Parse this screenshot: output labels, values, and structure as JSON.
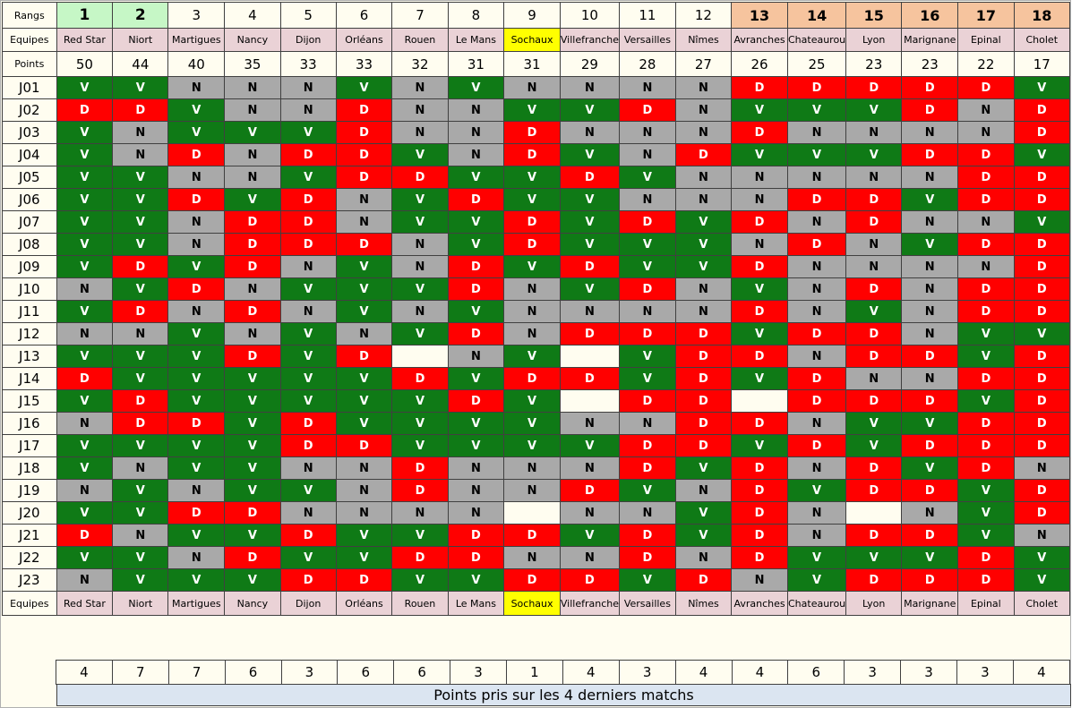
{
  "labels": {
    "ranks": "Rangs",
    "teams": "Equipes",
    "points": "Points",
    "recent_caption": "Points pris sur les 4 derniers matchs"
  },
  "colors": {
    "win": "#0f7a16",
    "draw": "#a9a9a9",
    "loss": "#ff0000",
    "top_rank": "#c6f7c6",
    "bottom_rank": "#f6c49e",
    "team_cell": "#ead2d6",
    "highlight_team": "#ffff00",
    "caption_bg": "#dbe5f1"
  },
  "highlight_team": "Sochaux",
  "teams": [
    {
      "rank": "1",
      "name": "Red Star",
      "points": "50",
      "recent": "4",
      "zone": "top"
    },
    {
      "rank": "2",
      "name": "Niort",
      "points": "44",
      "recent": "7",
      "zone": "top"
    },
    {
      "rank": "3",
      "name": "Martigues",
      "points": "40",
      "recent": "7",
      "zone": "mid"
    },
    {
      "rank": "4",
      "name": "Nancy",
      "points": "35",
      "recent": "6",
      "zone": "mid"
    },
    {
      "rank": "5",
      "name": "Dijon",
      "points": "33",
      "recent": "3",
      "zone": "mid"
    },
    {
      "rank": "6",
      "name": "Orléans",
      "points": "33",
      "recent": "6",
      "zone": "mid"
    },
    {
      "rank": "7",
      "name": "Rouen",
      "points": "32",
      "recent": "6",
      "zone": "mid"
    },
    {
      "rank": "8",
      "name": "Le Mans",
      "points": "31",
      "recent": "3",
      "zone": "mid"
    },
    {
      "rank": "9",
      "name": "Sochaux",
      "points": "31",
      "recent": "1",
      "zone": "mid"
    },
    {
      "rank": "10",
      "name": "Villefranche",
      "points": "29",
      "recent": "4",
      "zone": "mid"
    },
    {
      "rank": "11",
      "name": "Versailles",
      "points": "28",
      "recent": "3",
      "zone": "mid"
    },
    {
      "rank": "12",
      "name": "Nîmes",
      "points": "27",
      "recent": "4",
      "zone": "mid"
    },
    {
      "rank": "13",
      "name": "Avranches",
      "points": "26",
      "recent": "4",
      "zone": "bot"
    },
    {
      "rank": "14",
      "name": "Chateaurou",
      "points": "25",
      "recent": "6",
      "zone": "bot"
    },
    {
      "rank": "15",
      "name": "Lyon",
      "points": "23",
      "recent": "3",
      "zone": "bot"
    },
    {
      "rank": "16",
      "name": "Marignane",
      "points": "23",
      "recent": "3",
      "zone": "bot"
    },
    {
      "rank": "17",
      "name": "Epinal",
      "points": "22",
      "recent": "3",
      "zone": "bot"
    },
    {
      "rank": "18",
      "name": "Cholet",
      "points": "17",
      "recent": "4",
      "zone": "bot"
    }
  ],
  "matchdays": [
    {
      "label": "J01",
      "results": [
        "V",
        "V",
        "N",
        "N",
        "N",
        "V",
        "N",
        "V",
        "N",
        "N",
        "N",
        "N",
        "D",
        "D",
        "D",
        "D",
        "D",
        "V"
      ]
    },
    {
      "label": "J02",
      "results": [
        "D",
        "D",
        "V",
        "N",
        "N",
        "D",
        "N",
        "N",
        "V",
        "V",
        "D",
        "N",
        "V",
        "V",
        "V",
        "D",
        "N",
        "D"
      ]
    },
    {
      "label": "J03",
      "results": [
        "V",
        "N",
        "V",
        "V",
        "V",
        "D",
        "N",
        "N",
        "D",
        "N",
        "N",
        "N",
        "D",
        "N",
        "N",
        "N",
        "N",
        "D"
      ]
    },
    {
      "label": "J04",
      "results": [
        "V",
        "N",
        "D",
        "N",
        "D",
        "D",
        "V",
        "N",
        "D",
        "V",
        "N",
        "D",
        "V",
        "V",
        "V",
        "D",
        "D",
        "V"
      ]
    },
    {
      "label": "J05",
      "results": [
        "V",
        "V",
        "N",
        "N",
        "V",
        "D",
        "D",
        "V",
        "V",
        "D",
        "V",
        "N",
        "N",
        "N",
        "N",
        "N",
        "D",
        "D"
      ]
    },
    {
      "label": "J06",
      "results": [
        "V",
        "V",
        "D",
        "V",
        "D",
        "N",
        "V",
        "D",
        "V",
        "V",
        "N",
        "N",
        "N",
        "D",
        "D",
        "V",
        "D",
        "D"
      ]
    },
    {
      "label": "J07",
      "results": [
        "V",
        "V",
        "N",
        "D",
        "D",
        "N",
        "V",
        "V",
        "D",
        "V",
        "D",
        "V",
        "D",
        "N",
        "D",
        "N",
        "N",
        "V"
      ]
    },
    {
      "label": "J08",
      "results": [
        "V",
        "V",
        "N",
        "D",
        "D",
        "D",
        "N",
        "V",
        "D",
        "V",
        "V",
        "V",
        "N",
        "D",
        "N",
        "V",
        "D",
        "D"
      ]
    },
    {
      "label": "J09",
      "results": [
        "V",
        "D",
        "V",
        "D",
        "N",
        "V",
        "N",
        "D",
        "V",
        "D",
        "V",
        "V",
        "D",
        "N",
        "N",
        "N",
        "N",
        "D"
      ]
    },
    {
      "label": "J10",
      "results": [
        "N",
        "V",
        "D",
        "N",
        "V",
        "V",
        "V",
        "D",
        "N",
        "V",
        "D",
        "N",
        "V",
        "N",
        "D",
        "N",
        "D",
        "D"
      ]
    },
    {
      "label": "J11",
      "results": [
        "V",
        "D",
        "N",
        "D",
        "N",
        "V",
        "N",
        "V",
        "N",
        "N",
        "N",
        "N",
        "D",
        "N",
        "V",
        "N",
        "D",
        "D"
      ]
    },
    {
      "label": "J12",
      "results": [
        "N",
        "N",
        "V",
        "N",
        "V",
        "N",
        "V",
        "D",
        "N",
        "D",
        "D",
        "D",
        "V",
        "D",
        "D",
        "N",
        "V",
        "V"
      ]
    },
    {
      "label": "J13",
      "results": [
        "V",
        "V",
        "V",
        "D",
        "V",
        "D",
        "",
        "N",
        "V",
        "",
        "V",
        "D",
        "D",
        "N",
        "D",
        "D",
        "V",
        "D"
      ]
    },
    {
      "label": "J14",
      "results": [
        "D",
        "V",
        "V",
        "V",
        "V",
        "V",
        "D",
        "V",
        "D",
        "D",
        "V",
        "D",
        "V",
        "D",
        "N",
        "N",
        "D",
        "D"
      ]
    },
    {
      "label": "J15",
      "results": [
        "V",
        "D",
        "V",
        "V",
        "V",
        "V",
        "V",
        "D",
        "V",
        "",
        "D",
        "D",
        "",
        "D",
        "D",
        "D",
        "V",
        "D"
      ]
    },
    {
      "label": "J16",
      "results": [
        "N",
        "D",
        "D",
        "V",
        "D",
        "V",
        "V",
        "V",
        "V",
        "N",
        "N",
        "D",
        "D",
        "N",
        "V",
        "V",
        "D",
        "D"
      ]
    },
    {
      "label": "J17",
      "results": [
        "V",
        "V",
        "V",
        "V",
        "D",
        "D",
        "V",
        "V",
        "V",
        "V",
        "D",
        "D",
        "V",
        "D",
        "V",
        "D",
        "D",
        "D"
      ]
    },
    {
      "label": "J18",
      "results": [
        "V",
        "N",
        "V",
        "V",
        "N",
        "N",
        "D",
        "N",
        "N",
        "N",
        "D",
        "V",
        "D",
        "N",
        "D",
        "V",
        "D",
        "N"
      ]
    },
    {
      "label": "J19",
      "results": [
        "N",
        "V",
        "N",
        "V",
        "V",
        "N",
        "D",
        "N",
        "N",
        "D",
        "V",
        "N",
        "D",
        "V",
        "D",
        "D",
        "V",
        "D"
      ]
    },
    {
      "label": "J20",
      "results": [
        "V",
        "V",
        "D",
        "D",
        "N",
        "N",
        "N",
        "N",
        "",
        "N",
        "N",
        "V",
        "D",
        "N",
        "",
        "N",
        "V",
        "D"
      ]
    },
    {
      "label": "J21",
      "results": [
        "D",
        "N",
        "V",
        "V",
        "D",
        "V",
        "V",
        "D",
        "D",
        "V",
        "D",
        "V",
        "D",
        "N",
        "D",
        "D",
        "V",
        "N"
      ]
    },
    {
      "label": "J22",
      "results": [
        "V",
        "V",
        "N",
        "D",
        "V",
        "V",
        "D",
        "D",
        "N",
        "N",
        "D",
        "N",
        "D",
        "V",
        "V",
        "V",
        "D",
        "V"
      ]
    },
    {
      "label": "J23",
      "results": [
        "N",
        "V",
        "V",
        "V",
        "D",
        "D",
        "V",
        "V",
        "D",
        "D",
        "V",
        "D",
        "N",
        "V",
        "D",
        "D",
        "D",
        "V"
      ]
    }
  ]
}
